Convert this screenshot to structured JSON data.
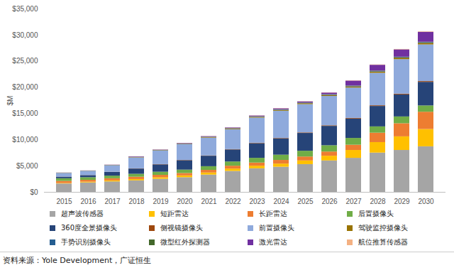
{
  "chart_data": {
    "type": "bar",
    "stacked": true,
    "y_label": "$M",
    "caption": "资料来源：Yole Development，广证恒生",
    "categories": [
      "2015",
      "2016",
      "2017",
      "2018",
      "2019",
      "2020",
      "2021",
      "2022",
      "2023",
      "2024",
      "2025",
      "2026",
      "2027",
      "2028",
      "2029",
      "2030"
    ],
    "series": [
      {
        "name": "超声波传感器",
        "color": "#a5a5a5",
        "values": [
          1600,
          1800,
          2000,
          2200,
          2500,
          2800,
          3300,
          4000,
          4500,
          4800,
          5300,
          6000,
          6500,
          7500,
          8000,
          8700
        ]
      },
      {
        "name": "短距雷达",
        "color": "#ffc000",
        "values": [
          100,
          150,
          200,
          250,
          300,
          350,
          400,
          450,
          500,
          600,
          700,
          900,
          1500,
          2000,
          2600,
          3300
        ]
      },
      {
        "name": "长距雷达",
        "color": "#ed7d31",
        "values": [
          400,
          350,
          400,
          450,
          450,
          450,
          500,
          550,
          600,
          700,
          750,
          800,
          1000,
          1800,
          2500,
          3300
        ]
      },
      {
        "name": "后置摄像头",
        "color": "#70ad47",
        "values": [
          500,
          500,
          500,
          550,
          600,
          650,
          700,
          800,
          900,
          1000,
          1100,
          1200,
          1300,
          1200,
          1300,
          1200
        ]
      },
      {
        "name": "360度全景摄像头",
        "color": "#264478",
        "values": [
          300,
          400,
          700,
          1000,
          1400,
          1800,
          2000,
          2300,
          2800,
          3100,
          3400,
          3700,
          3700,
          3900,
          4200,
          4500
        ]
      },
      {
        "name": "侧视镜摄像头",
        "color": "#9e480e",
        "values": [
          20,
          20,
          30,
          40,
          50,
          50,
          60,
          70,
          80,
          90,
          100,
          110,
          120,
          130,
          140,
          150
        ]
      },
      {
        "name": "前置摄像头",
        "color": "#8faadc",
        "values": [
          700,
          800,
          1250,
          2100,
          2600,
          3000,
          3400,
          3800,
          4800,
          5200,
          5400,
          5600,
          5800,
          6200,
          6600,
          7000
        ]
      },
      {
        "name": "驾驶监控摄像头",
        "color": "#997300",
        "values": [
          30,
          30,
          40,
          60,
          70,
          80,
          100,
          120,
          150,
          170,
          180,
          200,
          220,
          250,
          280,
          300
        ]
      },
      {
        "name": "手势识别摄像头",
        "color": "#255e91",
        "values": [
          10,
          10,
          20,
          30,
          30,
          40,
          50,
          60,
          70,
          80,
          90,
          100,
          110,
          120,
          130,
          140
        ]
      },
      {
        "name": "微型红外探测器",
        "color": "#43682b",
        "values": [
          10,
          10,
          10,
          20,
          20,
          20,
          30,
          30,
          40,
          40,
          40,
          50,
          50,
          60,
          60,
          70
        ]
      },
      {
        "name": "激光雷达",
        "color": "#7030a0",
        "values": [
          20,
          20,
          40,
          80,
          60,
          90,
          100,
          120,
          140,
          180,
          200,
          300,
          950,
          1100,
          1400,
          1900
        ]
      },
      {
        "name": "航位推算传感器",
        "color": "#f4b183",
        "values": [
          10,
          10,
          10,
          20,
          20,
          20,
          30,
          30,
          30,
          40,
          40,
          40,
          50,
          60,
          70,
          80
        ]
      }
    ],
    "ylim": [
      0,
      35000
    ],
    "yticks": [
      {
        "value": 0,
        "label": "$0"
      },
      {
        "value": 5000,
        "label": "$5,000"
      },
      {
        "value": 10000,
        "label": "$10,000"
      },
      {
        "value": 15000,
        "label": "$15,000"
      },
      {
        "value": 20000,
        "label": "$20,000"
      },
      {
        "value": 25000,
        "label": "$25,000"
      },
      {
        "value": 30000,
        "label": "$30,000"
      },
      {
        "value": 35000,
        "label": "$35,000"
      }
    ],
    "grid": false,
    "legend": "bottom"
  }
}
